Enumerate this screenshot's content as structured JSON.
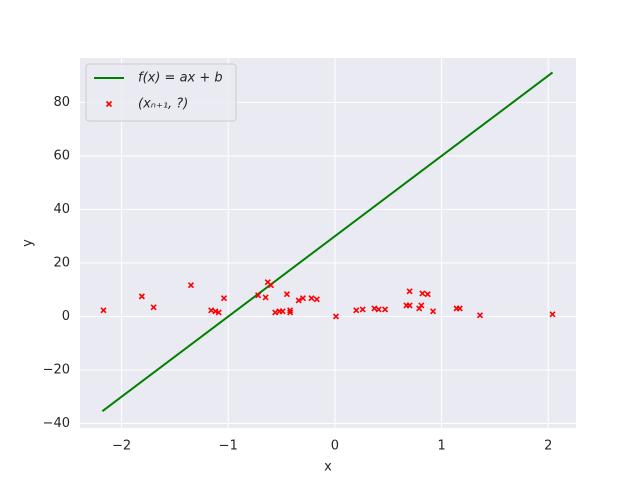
{
  "chart_data": {
    "type": "line",
    "x_label": "x",
    "y_label": "y",
    "xlim": [
      -2.39,
      2.26
    ],
    "ylim": [
      -41.7,
      96.6
    ],
    "xticks": [
      {
        "value": -2,
        "label": "−2"
      },
      {
        "value": -1,
        "label": "−1"
      },
      0,
      1,
      2
    ],
    "yticks": [
      {
        "value": -40,
        "label": "−40"
      },
      {
        "value": -20,
        "label": "−20"
      },
      0,
      20,
      40,
      60,
      80
    ],
    "grid": true,
    "background": "#eaeaf2",
    "legend": "upper-left",
    "series": [
      {
        "name": "f(x) = ax + b",
        "type": "line",
        "color": "#008000",
        "x": [
          -2.18,
          2.04
        ],
        "values": [
          -35.4,
          91.2
        ]
      },
      {
        "name": "(xₙ₊₁, ?)",
        "type": "scatter",
        "color": "#ff0000",
        "x": [
          -2.17,
          -1.81,
          -1.7,
          -1.35,
          -1.16,
          -1.12,
          -1.09,
          -1.04,
          -0.72,
          -0.65,
          -0.63,
          -0.6,
          -0.56,
          -0.52,
          -0.49,
          -0.45,
          -0.42,
          -0.42,
          -0.34,
          -0.3,
          -0.22,
          -0.17,
          0.01,
          0.2,
          0.26,
          0.37,
          0.41,
          0.47,
          0.67,
          0.7,
          0.7,
          0.79,
          0.81,
          0.82,
          0.87,
          0.92,
          1.14,
          1.17,
          1.36,
          2.04
        ],
        "values": [
          2.3,
          7.5,
          3.4,
          11.7,
          2.3,
          1.9,
          1.5,
          6.8,
          7.9,
          7.1,
          12.8,
          11.7,
          1.5,
          1.9,
          1.9,
          8.3,
          1.5,
          2.3,
          6.0,
          6.8,
          6.8,
          6.4,
          0.0,
          2.3,
          2.6,
          3.0,
          2.6,
          2.6,
          4.1,
          4.1,
          9.4,
          3.0,
          4.1,
          8.6,
          8.3,
          1.9,
          3.0,
          3.0,
          0.4,
          0.8
        ]
      }
    ]
  }
}
